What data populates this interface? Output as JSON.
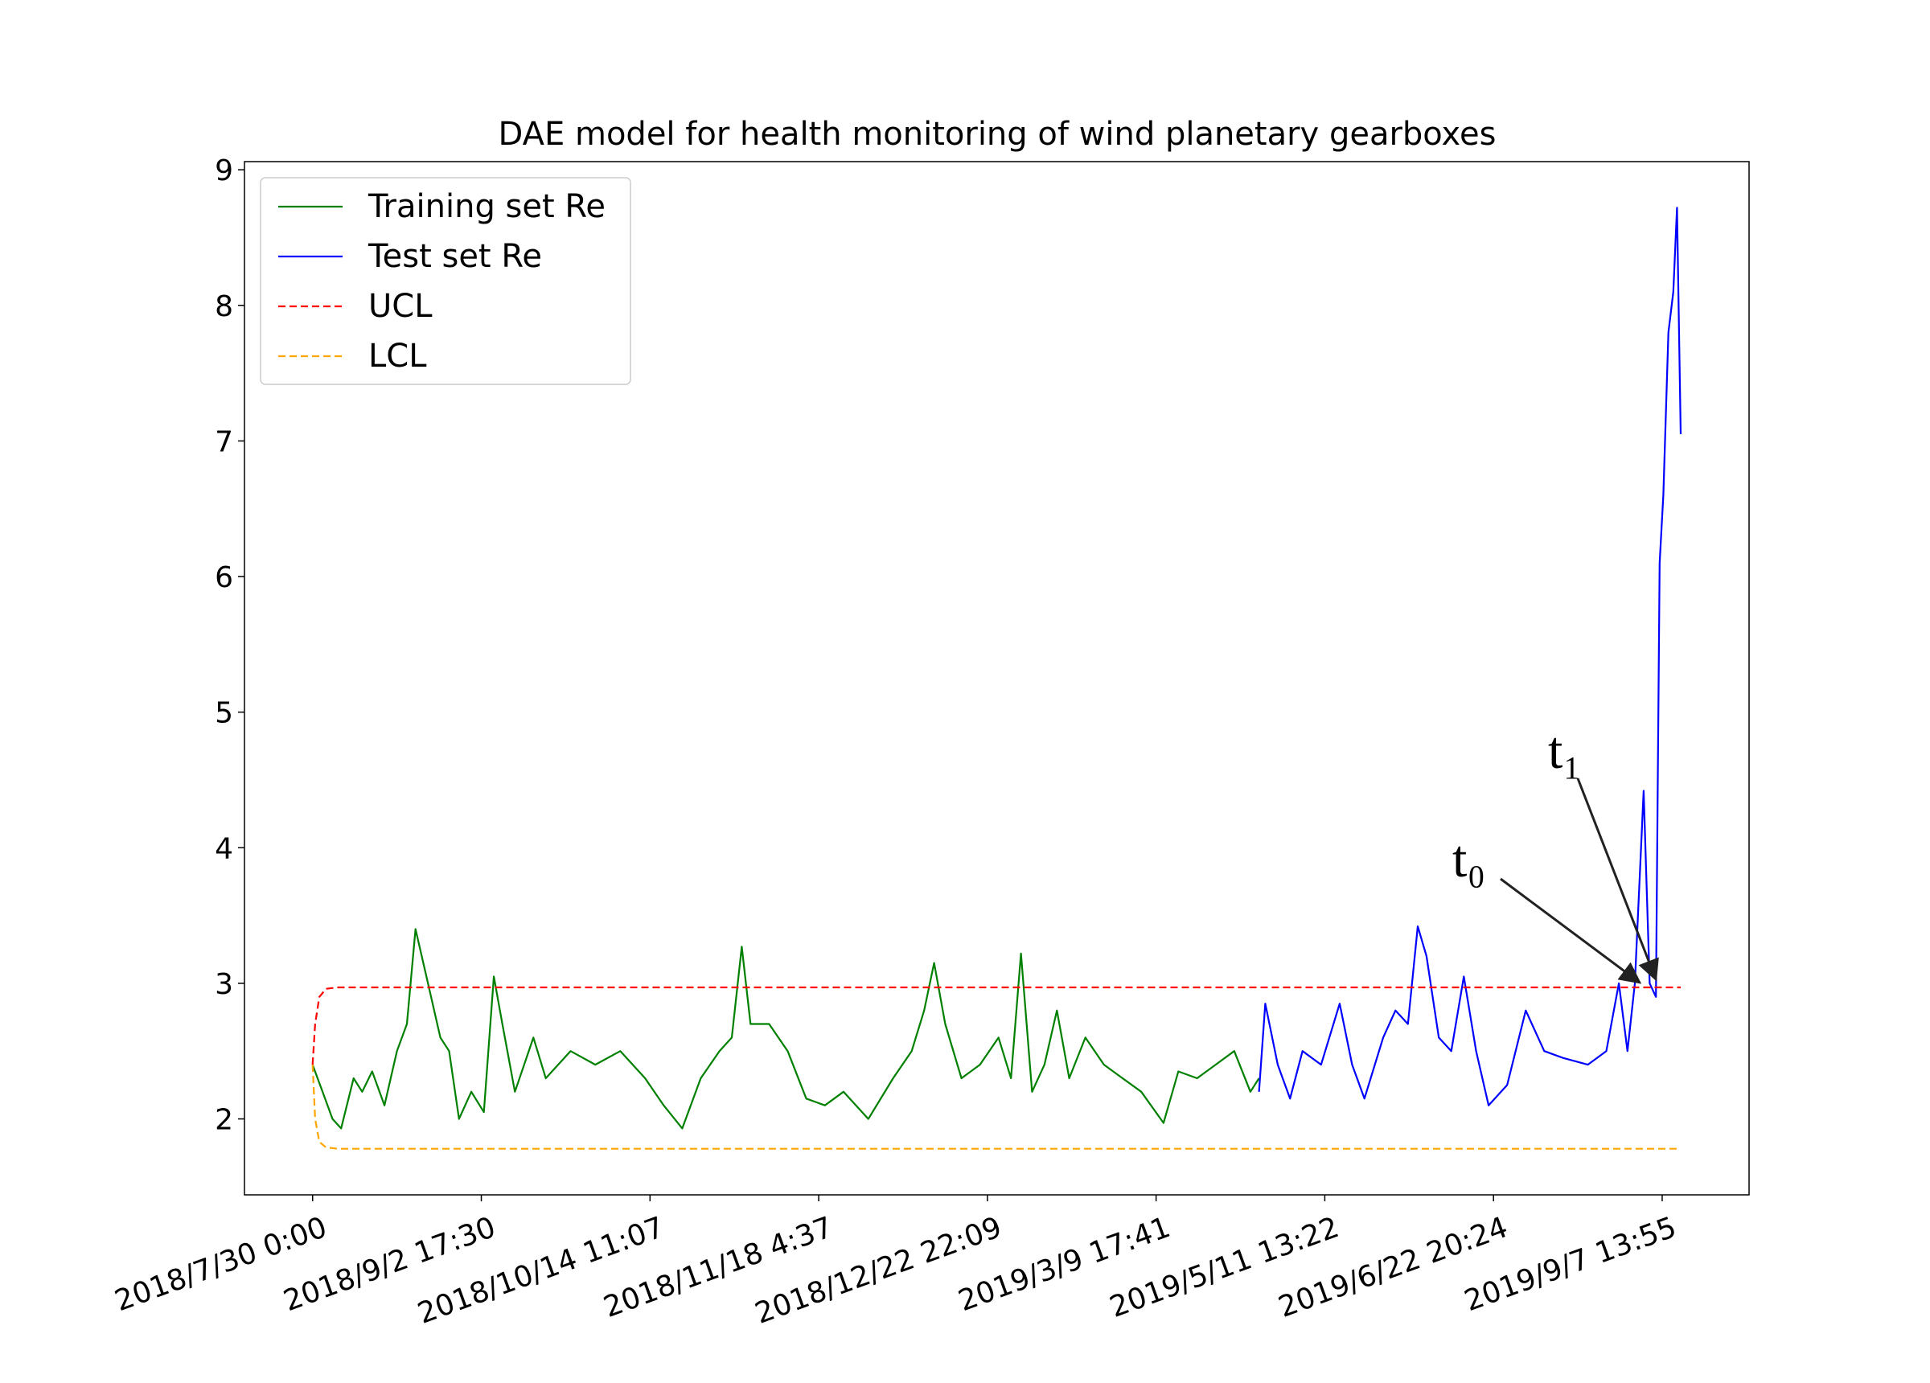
{
  "chart_data": {
    "type": "line",
    "title": "DAE model for health monitoring of wind planetary gearboxes",
    "xlim": [
      -404,
      8515
    ],
    "ylim": [
      1.44,
      9.06
    ],
    "xticks": [
      {
        "value": 0,
        "label": "2018/7/30 0:00"
      },
      {
        "value": 1000,
        "label": "2018/9/2 17:30"
      },
      {
        "value": 2000,
        "label": "2018/10/14 11:07"
      },
      {
        "value": 3000,
        "label": "2018/11/18 4:37"
      },
      {
        "value": 4000,
        "label": "2018/12/22 22:09"
      },
      {
        "value": 5000,
        "label": "2019/3/9 17:41"
      },
      {
        "value": 6000,
        "label": "2019/5/11 13:22"
      },
      {
        "value": 7000,
        "label": "2019/6/22 20:24"
      },
      {
        "value": 8000,
        "label": "2019/9/7 13:55"
      }
    ],
    "yticks": [
      2,
      3,
      4,
      5,
      6,
      7,
      8,
      9
    ],
    "legend": "upper left",
    "series": [
      {
        "name": "Training set Re",
        "color": "#008000",
        "linestyle": "solid",
        "x": [
          0,
          59,
          118,
          169,
          243,
          294,
          353,
          426,
          500,
          559,
          610,
          684,
          757,
          809,
          868,
          941,
          1015,
          1074,
          1125,
          1199,
          1309,
          1382,
          1529,
          1676,
          1824,
          1971,
          2081,
          2191,
          2301,
          2412,
          2485,
          2544,
          2596,
          2706,
          2816,
          2926,
          3037,
          3147,
          3294,
          3441,
          3551,
          3625,
          3684,
          3750,
          3846,
          3956,
          4066,
          4140,
          4199,
          4265,
          4338,
          4412,
          4485,
          4581,
          4691,
          4801,
          4912,
          5044,
          5132,
          5243,
          5353,
          5463,
          5559,
          5610
        ],
        "values": [
          2.4,
          2.2,
          2.0,
          1.93,
          2.3,
          2.2,
          2.35,
          2.1,
          2.5,
          2.7,
          3.4,
          3.0,
          2.6,
          2.5,
          2.0,
          2.2,
          2.05,
          3.05,
          2.7,
          2.2,
          2.6,
          2.3,
          2.5,
          2.4,
          2.5,
          2.3,
          2.1,
          1.93,
          2.3,
          2.5,
          2.6,
          3.27,
          2.7,
          2.7,
          2.5,
          2.15,
          2.1,
          2.2,
          2.0,
          2.3,
          2.5,
          2.8,
          3.15,
          2.7,
          2.3,
          2.4,
          2.6,
          2.3,
          3.22,
          2.2,
          2.4,
          2.8,
          2.3,
          2.6,
          2.4,
          2.3,
          2.2,
          1.97,
          2.35,
          2.3,
          2.4,
          2.5,
          2.2,
          2.3
        ]
      },
      {
        "name": "Test set Re",
        "color": "#0000ff",
        "linestyle": "solid",
        "x": [
          5610,
          5647,
          5721,
          5794,
          5868,
          5978,
          6088,
          6162,
          6235,
          6346,
          6419,
          6493,
          6551,
          6603,
          6676,
          6750,
          6824,
          6897,
          6971,
          7081,
          7191,
          7301,
          7412,
          7559,
          7669,
          7743,
          7794,
          7838,
          7890,
          7926,
          7963,
          7985,
          8007,
          8037,
          8066,
          8088,
          8110
        ],
        "values": [
          2.2,
          2.85,
          2.4,
          2.15,
          2.5,
          2.4,
          2.85,
          2.4,
          2.15,
          2.6,
          2.8,
          2.7,
          3.42,
          3.2,
          2.6,
          2.5,
          3.05,
          2.5,
          2.1,
          2.25,
          2.8,
          2.5,
          2.45,
          2.4,
          2.5,
          3.0,
          2.5,
          3.0,
          4.42,
          3.0,
          2.9,
          6.1,
          6.6,
          7.8,
          8.1,
          8.72,
          7.05
        ]
      },
      {
        "name": "UCL",
        "color": "#ff0000",
        "linestyle": "dashed",
        "x": [
          0,
          15,
          40,
          80,
          150,
          8110
        ],
        "values": [
          2.4,
          2.7,
          2.9,
          2.96,
          2.97,
          2.97
        ]
      },
      {
        "name": "LCL",
        "color": "#ffa500",
        "linestyle": "dashed",
        "x": [
          0,
          15,
          40,
          80,
          150,
          8110
        ],
        "values": [
          2.4,
          2.0,
          1.83,
          1.79,
          1.78,
          1.78
        ]
      }
    ],
    "annotations": [
      "t₀",
      "t₁"
    ]
  }
}
